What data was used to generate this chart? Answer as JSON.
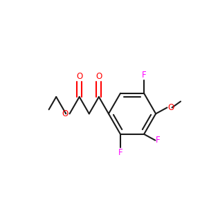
{
  "bg_color": "#ffffff",
  "bond_color": "#1a1a1a",
  "oxygen_color": "#ff0000",
  "fluorine_color": "#ff00ff",
  "line_width": 1.5,
  "fig_size": [
    3.02,
    3.02
  ],
  "dpi": 100,
  "xlim": [
    0.0,
    1.0
  ],
  "ylim": [
    0.1,
    0.9
  ]
}
